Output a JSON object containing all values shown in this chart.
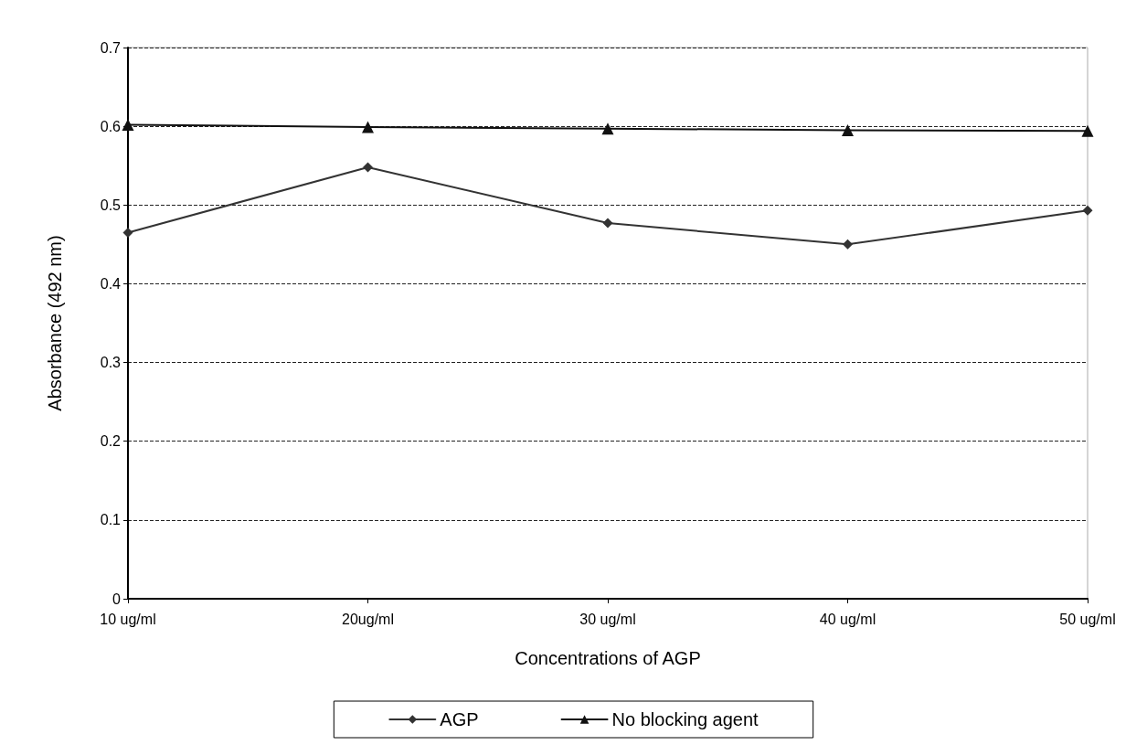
{
  "chart_data": {
    "type": "line",
    "xlabel": "Concentrations of AGP",
    "ylabel": "Absorbance (492 nm)",
    "categories": [
      "10 ug/ml",
      "20ug/ml",
      "30 ug/ml",
      "40 ug/ml",
      "50 ug/ml"
    ],
    "series": [
      {
        "name": "AGP",
        "color": "#333333",
        "marker": "diamond",
        "values": [
          0.465,
          0.548,
          0.477,
          0.45,
          0.493
        ]
      },
      {
        "name": "No blocking agent",
        "color": "#111111",
        "marker": "triangle",
        "values": [
          0.602,
          0.599,
          0.597,
          0.595,
          0.594
        ]
      }
    ],
    "ylim": [
      0,
      0.7
    ],
    "yticks": [
      0,
      0.1,
      0.2,
      0.3,
      0.4,
      0.5,
      0.6,
      0.7
    ],
    "grid": "y",
    "legend": "bottom",
    "line_style": "solid"
  }
}
